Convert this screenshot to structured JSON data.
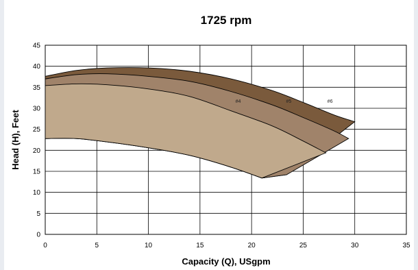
{
  "chart_data": {
    "type": "area",
    "title": "1725 rpm",
    "xlabel": "Capacity (Q), USgpm",
    "ylabel": "Head (H), Feet",
    "xlim": [
      0,
      35
    ],
    "ylim": [
      0,
      45
    ],
    "xticks": [
      0,
      5,
      10,
      15,
      20,
      25,
      30,
      35
    ],
    "yticks": [
      0,
      5,
      10,
      15,
      20,
      25,
      30,
      35,
      40,
      45
    ],
    "grid": true,
    "series": [
      {
        "name": "#6",
        "color": "#7a5a3c",
        "label_at": [
          27.6,
          31.3
        ],
        "upper": [
          [
            0,
            37.6
          ],
          [
            3,
            39.0
          ],
          [
            6,
            39.6
          ],
          [
            10,
            39.6
          ],
          [
            14,
            38.8
          ],
          [
            18,
            37.0
          ],
          [
            22,
            34.2
          ],
          [
            25,
            31.4
          ],
          [
            28,
            28.4
          ],
          [
            30,
            26.8
          ]
        ],
        "lower_end": [
          23.4,
          14.2
        ]
      },
      {
        "name": "#5",
        "color": "#a0836a",
        "label_at": [
          23.6,
          31.3
        ],
        "upper": [
          [
            0,
            37.0
          ],
          [
            3,
            38.0
          ],
          [
            6,
            38.2
          ],
          [
            10,
            37.6
          ],
          [
            14,
            36.4
          ],
          [
            18,
            34.0
          ],
          [
            22,
            30.8
          ],
          [
            25,
            27.8
          ],
          [
            28,
            24.6
          ],
          [
            29.4,
            22.8
          ]
        ],
        "lower_end": [
          23.4,
          14.2
        ]
      },
      {
        "name": "#4",
        "color": "#c0a98c",
        "label_at": [
          18.7,
          31.3
        ],
        "upper": [
          [
            0,
            35.4
          ],
          [
            3,
            35.8
          ],
          [
            6,
            35.6
          ],
          [
            10,
            34.6
          ],
          [
            14,
            32.8
          ],
          [
            18,
            29.4
          ],
          [
            22,
            25.8
          ],
          [
            25,
            22.2
          ],
          [
            27.2,
            19.4
          ]
        ],
        "lower": [
          [
            0,
            22.8
          ],
          [
            3,
            22.8
          ],
          [
            6,
            22.0
          ],
          [
            10,
            20.6
          ],
          [
            14,
            18.8
          ],
          [
            18,
            16.0
          ],
          [
            21,
            13.4
          ]
        ],
        "lower_end": [
          21.0,
          13.4
        ]
      }
    ]
  }
}
